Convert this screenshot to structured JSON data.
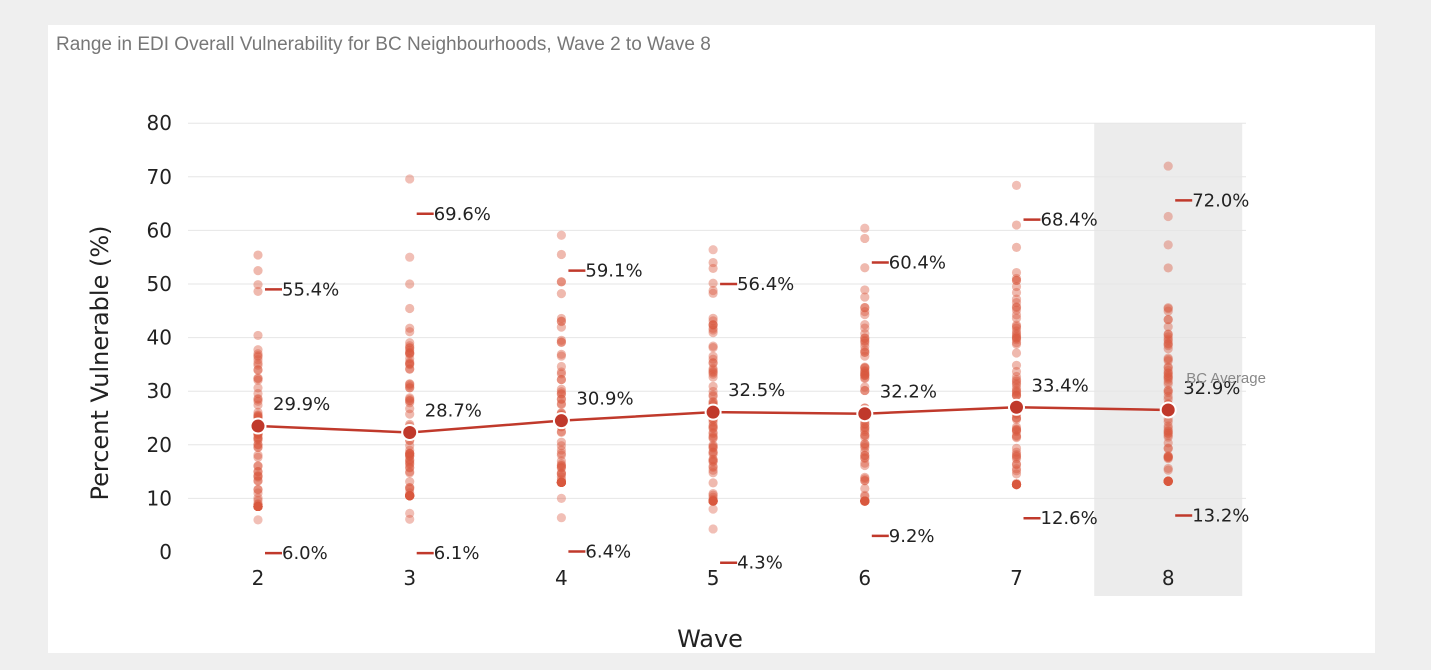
{
  "colors": {
    "accent": "#c0392b",
    "dots": "#d9573f",
    "highlight": "#ececec",
    "grid": "#e6e6e6"
  },
  "chart_data": {
    "type": "scatter",
    "title": "Range in EDI Overall Vulnerability for BC Neighbourhoods, Wave 2 to Wave 8",
    "xlabel": "Wave",
    "ylabel": "Percent Vulnerable (%)",
    "ylim": [
      0,
      80
    ],
    "yticks": [
      "0",
      "10",
      "20",
      "30",
      "40",
      "50",
      "60",
      "70",
      "80"
    ],
    "categories": [
      "2",
      "3",
      "4",
      "5",
      "6",
      "7",
      "8"
    ],
    "highlighted_category": "8",
    "grid": true,
    "average_label": "BC Average",
    "series": [
      {
        "name": "BC Average",
        "values": [
          23.5,
          22.3,
          24.5,
          26.1,
          25.8,
          27.0,
          26.5
        ],
        "labels": [
          "29.9%",
          "28.7%",
          "30.9%",
          "32.5%",
          "32.2%",
          "33.4%",
          "32.9%"
        ]
      }
    ],
    "max": {
      "values": [
        49.0,
        63.1,
        52.5,
        50.0,
        54.0,
        62.0,
        65.6
      ],
      "labels": [
        "55.4%",
        "69.6%",
        "59.1%",
        "56.4%",
        "60.4%",
        "68.4%",
        "72.0%"
      ]
    },
    "min": {
      "values": [
        -0.2,
        -0.2,
        0.1,
        -2.0,
        3.0,
        6.3,
        6.8
      ],
      "labels": [
        "6.0%",
        "6.1%",
        "6.4%",
        "4.3%",
        "9.2%",
        "12.6%",
        "13.2%"
      ]
    },
    "neighbourhood_spread": [
      {
        "low": 8.5,
        "high": 55.4,
        "outliers": [
          6.0
        ]
      },
      {
        "low": 10.5,
        "high": 50.0,
        "outliers": [
          6.1,
          7.2,
          55.0,
          69.6
        ]
      },
      {
        "low": 13.0,
        "high": 55.5,
        "outliers": [
          6.4,
          10.0,
          59.1
        ]
      },
      {
        "low": 9.5,
        "high": 54.0,
        "outliers": [
          4.3,
          8.0,
          56.4
        ]
      },
      {
        "low": 9.5,
        "high": 58.5,
        "outliers": [
          60.4
        ]
      },
      {
        "low": 12.6,
        "high": 61.0,
        "outliers": [
          68.4
        ]
      },
      {
        "low": 13.2,
        "high": 53.0,
        "outliers": [
          57.3,
          62.6,
          72.0
        ]
      }
    ]
  }
}
